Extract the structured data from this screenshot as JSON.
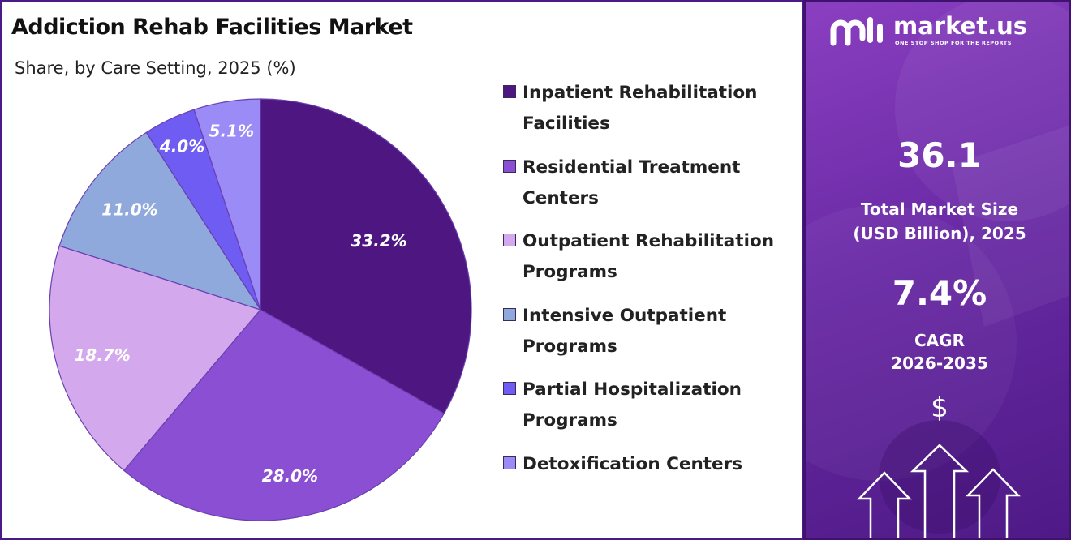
{
  "chart_data": {
    "type": "pie",
    "title": "Addiction Rehab Facilities Market",
    "subtitle": "Share, by Care Setting, 2025 (%)",
    "legend_position": "right",
    "slices": [
      {
        "name": "Inpatient Rehabilitation Facilities",
        "value": 33.2,
        "label": "33.2%",
        "color": "#4e1680"
      },
      {
        "name": "Residential Treatment Centers",
        "value": 28.0,
        "label": "28.0%",
        "color": "#8b4fd3"
      },
      {
        "name": "Outpatient Rehabilitation Programs",
        "value": 18.7,
        "label": "18.7%",
        "color": "#d3a8ec"
      },
      {
        "name": "Intensive Outpatient Programs",
        "value": 11.0,
        "label": "11.0%",
        "color": "#8fa9dc"
      },
      {
        "name": "Partial Hospitalization Programs",
        "value": 4.0,
        "label": "4.0%",
        "color": "#6f5cf2"
      },
      {
        "name": "Detoxification Centers",
        "value": 5.1,
        "label": "5.1%",
        "color": "#9b8bf7"
      }
    ]
  },
  "sidebar": {
    "brand_name": "market.us",
    "brand_tagline": "ONE STOP SHOP FOR THE REPORTS",
    "market_size_value": "36.1",
    "market_size_label_line1": "Total Market Size",
    "market_size_label_line2": "(USD Billion), 2025",
    "cagr_value": "7.4%",
    "cagr_label_line1": "CAGR",
    "cagr_label_line2": "2026-2035",
    "currency_symbol": "$"
  },
  "icons": [
    "market-us-logo-icon",
    "up-arrow-icon"
  ]
}
